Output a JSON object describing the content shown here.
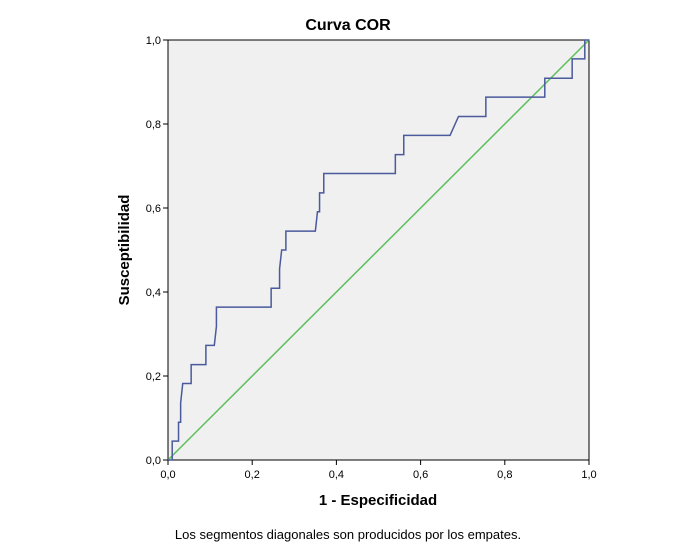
{
  "chart_data": {
    "type": "line",
    "title": "Curva COR",
    "xlabel": "1 - Especificidad",
    "ylabel": "Susceptibilidad",
    "footnote": "Los segmentos diagonales son producidos por los empates.",
    "xlim": [
      0,
      1
    ],
    "ylim": [
      0,
      1
    ],
    "x_ticks": [
      "0,0",
      "0,2",
      "0,4",
      "0,6",
      "0,8",
      "1,0"
    ],
    "y_ticks": [
      "0,0",
      "0,2",
      "0,4",
      "0,6",
      "0,8",
      "1,0"
    ],
    "grid": false,
    "colors": {
      "plot_background": "#f0f0f0",
      "roc_curve": "#4a5a9c",
      "reference_line": "#5cbf5c"
    },
    "series": [
      {
        "values": [
          [
            0.0,
            0.0
          ],
          [
            0.01,
            0.0
          ],
          [
            0.01,
            0.045
          ],
          [
            0.025,
            0.045
          ],
          [
            0.025,
            0.09
          ],
          [
            0.03,
            0.09
          ],
          [
            0.03,
            0.136
          ],
          [
            0.035,
            0.182
          ],
          [
            0.055,
            0.182
          ],
          [
            0.055,
            0.227
          ],
          [
            0.09,
            0.227
          ],
          [
            0.09,
            0.273
          ],
          [
            0.11,
            0.273
          ],
          [
            0.115,
            0.318
          ],
          [
            0.115,
            0.364
          ],
          [
            0.245,
            0.364
          ],
          [
            0.245,
            0.409
          ],
          [
            0.265,
            0.409
          ],
          [
            0.265,
            0.455
          ],
          [
            0.27,
            0.5
          ],
          [
            0.28,
            0.5
          ],
          [
            0.28,
            0.545
          ],
          [
            0.35,
            0.545
          ],
          [
            0.355,
            0.591
          ],
          [
            0.36,
            0.591
          ],
          [
            0.36,
            0.636
          ],
          [
            0.37,
            0.636
          ],
          [
            0.37,
            0.682
          ],
          [
            0.54,
            0.682
          ],
          [
            0.54,
            0.727
          ],
          [
            0.56,
            0.727
          ],
          [
            0.56,
            0.773
          ],
          [
            0.67,
            0.773
          ],
          [
            0.69,
            0.818
          ],
          [
            0.755,
            0.818
          ],
          [
            0.755,
            0.864
          ],
          [
            0.895,
            0.864
          ],
          [
            0.895,
            0.909
          ],
          [
            0.96,
            0.909
          ],
          [
            0.96,
            0.955
          ],
          [
            0.99,
            0.955
          ],
          [
            0.99,
            1.0
          ],
          [
            1.0,
            1.0
          ]
        ]
      },
      {
        "values": [
          [
            0.0,
            0.0
          ],
          [
            1.0,
            1.0
          ]
        ]
      }
    ]
  }
}
